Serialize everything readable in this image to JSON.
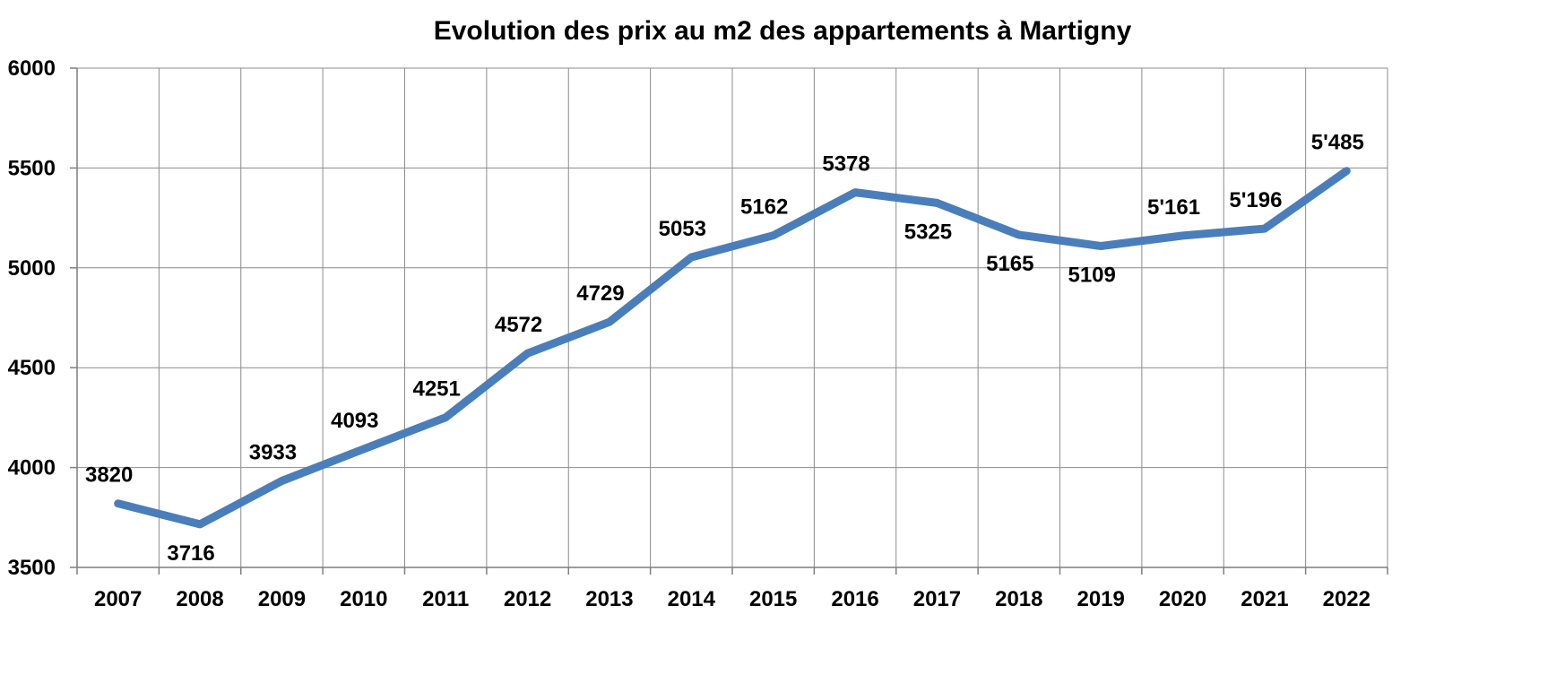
{
  "chart_data": {
    "type": "line",
    "title": "Evolution des prix au m2 des appartements à Martigny",
    "xlabel": "",
    "ylabel": "",
    "categories": [
      "2007",
      "2008",
      "2009",
      "2010",
      "2011",
      "2012",
      "2013",
      "2014",
      "2015",
      "2016",
      "2017",
      "2018",
      "2019",
      "2020",
      "2021",
      "2022"
    ],
    "series": [
      {
        "values": [
          3820,
          3716,
          3933,
          4093,
          4251,
          4572,
          4729,
          5053,
          5162,
          5378,
          5325,
          5165,
          5109,
          5161,
          5196,
          5485
        ],
        "data_labels": [
          "3820",
          "3716",
          "3933",
          "4093",
          "4251",
          "4572",
          "4729",
          "5053",
          "5162",
          "5378",
          "5325",
          "5165",
          "5109",
          "5'161",
          "5'196",
          "5'485"
        ],
        "label_placement": [
          "above",
          "below",
          "above",
          "above",
          "above",
          "above",
          "above",
          "above",
          "above",
          "above",
          "below",
          "below",
          "below",
          "above",
          "above",
          "above"
        ]
      }
    ],
    "ylim": [
      3500,
      6000
    ],
    "yticks": [
      "3500",
      "4000",
      "4500",
      "5000",
      "5500",
      "6000"
    ],
    "grid": true,
    "legend": "none",
    "line_color": "#4a7ebb",
    "grid_color": "#8c8c8c"
  }
}
